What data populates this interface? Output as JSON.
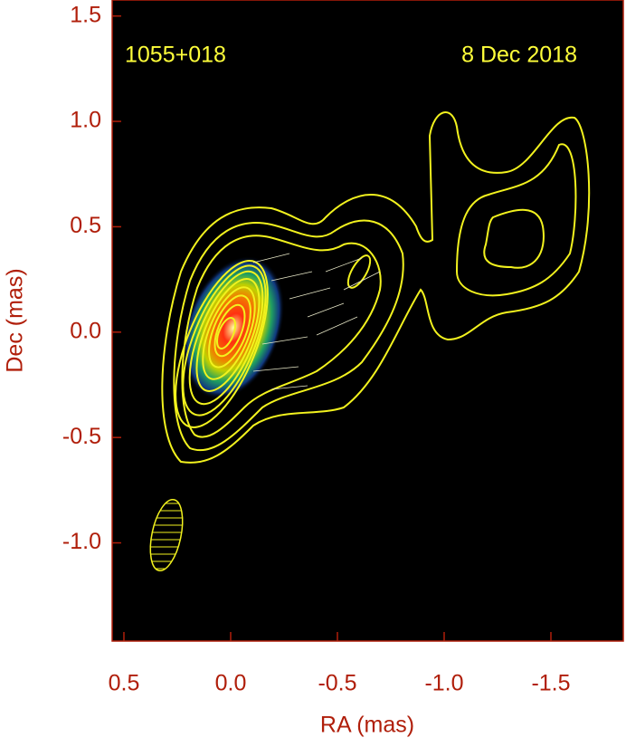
{
  "chart_data": {
    "type": "contour",
    "annotations": [
      "1055+018",
      "8 Dec 2018"
    ],
    "xlabel": "RA (mas)",
    "ylabel": "Dec (mas)",
    "xlim": [
      0.555,
      -1.839
    ],
    "xticks": [
      0.5,
      {
        "value": 0,
        "label": "0.0"
      },
      -0.5,
      {
        "value": -1,
        "label": "-1.0"
      },
      -1.5
    ],
    "ylim": [
      -1.466,
      1.576
    ],
    "yticks": [
      1.5,
      {
        "value": 1,
        "label": "1.0"
      },
      0.5,
      {
        "value": 0,
        "label": "0.0"
      },
      -0.5,
      {
        "value": -1,
        "label": "-1.0"
      }
    ]
  }
}
